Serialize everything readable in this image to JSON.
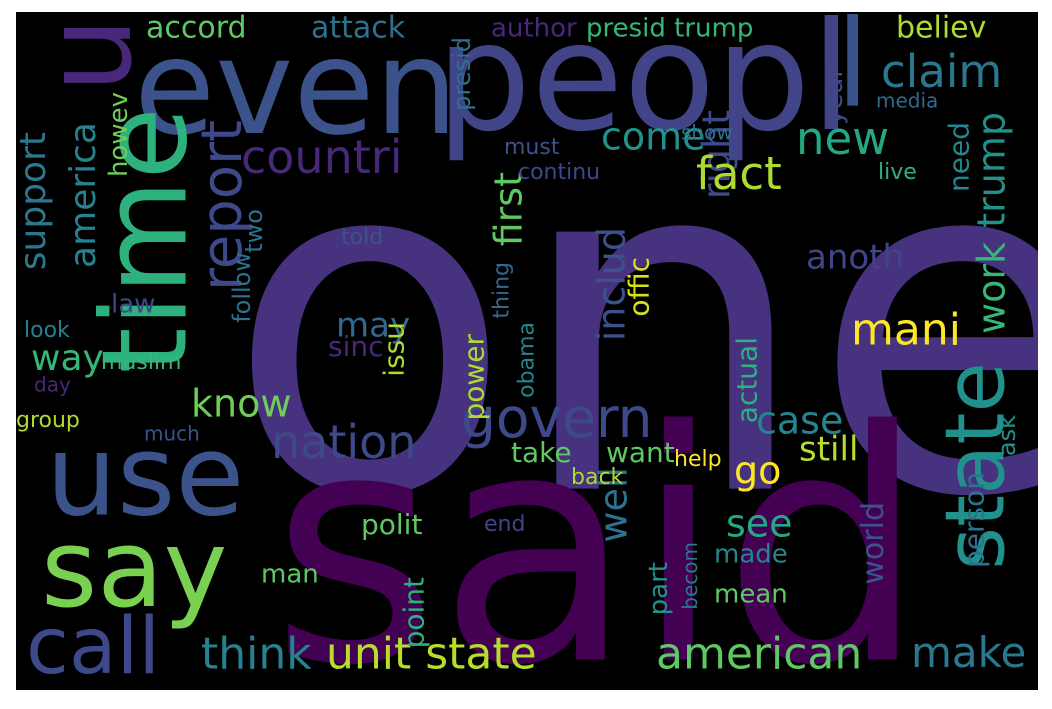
{
  "figure": {
    "background": "#000000",
    "words": [
      {
        "text": "one",
        "color": "#46327e"
      },
      {
        "text": "said",
        "color": "#440154"
      },
      {
        "text": "peopl",
        "color": "#414487"
      },
      {
        "text": "even",
        "color": "#3b528b"
      },
      {
        "text": "u",
        "color": "#482878"
      },
      {
        "text": "time",
        "color": "#2db27d"
      },
      {
        "text": "use",
        "color": "#3b528b"
      },
      {
        "text": "say",
        "color": "#7ad151"
      },
      {
        "text": "call",
        "color": "#3e4989"
      },
      {
        "text": "state",
        "color": "#21918c"
      },
      {
        "text": "l",
        "color": "#3b528b"
      },
      {
        "text": "report",
        "color": "#3e4989"
      },
      {
        "text": "countri",
        "color": "#482878"
      },
      {
        "text": "govern",
        "color": "#3e4989"
      },
      {
        "text": "nation",
        "color": "#3e4989"
      },
      {
        "text": "unit state",
        "color": "#b5de2b"
      },
      {
        "text": "american",
        "color": "#5ec962"
      },
      {
        "text": "think",
        "color": "#26828e"
      },
      {
        "text": "make",
        "color": "#2a788e"
      },
      {
        "text": "claim",
        "color": "#2a788e"
      },
      {
        "text": "work",
        "color": "#35b779"
      },
      {
        "text": "trump",
        "color": "#21918c"
      },
      {
        "text": "includ",
        "color": "#3b528b"
      },
      {
        "text": "right",
        "color": "#3e4989"
      },
      {
        "text": "fact",
        "color": "#addc30"
      },
      {
        "text": "new",
        "color": "#22a884"
      },
      {
        "text": "come",
        "color": "#21918c"
      },
      {
        "text": "first",
        "color": "#5ec962"
      },
      {
        "text": "mani",
        "color": "#fde725"
      },
      {
        "text": "know",
        "color": "#6ece58"
      },
      {
        "text": "way",
        "color": "#35b779"
      },
      {
        "text": "support",
        "color": "#2a788e"
      },
      {
        "text": "america",
        "color": "#26828e"
      },
      {
        "text": "well",
        "color": "#2c728e"
      },
      {
        "text": "go",
        "color": "#fde725"
      },
      {
        "text": "case",
        "color": "#25858e"
      },
      {
        "text": "see",
        "color": "#22a884"
      },
      {
        "text": "still",
        "color": "#b5de2b"
      },
      {
        "text": "take",
        "color": "#5ec962"
      },
      {
        "text": "want",
        "color": "#5ec962"
      },
      {
        "text": "polit",
        "color": "#5ec962"
      },
      {
        "text": "may",
        "color": "#31688e"
      },
      {
        "text": "issu",
        "color": "#addc30"
      },
      {
        "text": "sinc",
        "color": "#482878"
      },
      {
        "text": "anoth",
        "color": "#414487"
      },
      {
        "text": "offic",
        "color": "#d8e219"
      },
      {
        "text": "power",
        "color": "#addc30"
      },
      {
        "text": "actual",
        "color": "#2db27d"
      },
      {
        "text": "accord",
        "color": "#5ec962"
      },
      {
        "text": "attack",
        "color": "#2c728e"
      },
      {
        "text": "author",
        "color": "#482878"
      },
      {
        "text": "presid trump",
        "color": "#35b779"
      },
      {
        "text": "believ",
        "color": "#addc30"
      },
      {
        "text": "year",
        "color": "#3e4989"
      },
      {
        "text": "media",
        "color": "#31688e"
      },
      {
        "text": "show",
        "color": "#2c728e"
      },
      {
        "text": "must",
        "color": "#3b528b"
      },
      {
        "text": "continu",
        "color": "#3e4989"
      },
      {
        "text": "live",
        "color": "#2db27d"
      },
      {
        "text": "need",
        "color": "#25858e"
      },
      {
        "text": "presid",
        "color": "#2c728e"
      },
      {
        "text": "howev",
        "color": "#6ece58"
      },
      {
        "text": "two",
        "color": "#2c728e"
      },
      {
        "text": "law",
        "color": "#3e4989"
      },
      {
        "text": "follow",
        "color": "#2c728e"
      },
      {
        "text": "told",
        "color": "#3b528b"
      },
      {
        "text": "thing",
        "color": "#31688e"
      },
      {
        "text": "obama",
        "color": "#26828e"
      },
      {
        "text": "look",
        "color": "#26828e"
      },
      {
        "text": "muslim",
        "color": "#35b779"
      },
      {
        "text": "day",
        "color": "#482878"
      },
      {
        "text": "group",
        "color": "#addc30"
      },
      {
        "text": "much",
        "color": "#3b528b"
      },
      {
        "text": "help",
        "color": "#fde725"
      },
      {
        "text": "back",
        "color": "#addc30"
      },
      {
        "text": "end",
        "color": "#414487"
      },
      {
        "text": "becom",
        "color": "#2a788e"
      },
      {
        "text": "part",
        "color": "#21918c"
      },
      {
        "text": "made",
        "color": "#25858e"
      },
      {
        "text": "mean",
        "color": "#5ec962"
      },
      {
        "text": "world",
        "color": "#3b528b"
      },
      {
        "text": "person",
        "color": "#2c728e"
      },
      {
        "text": "ask",
        "color": "#21918c"
      },
      {
        "text": "man",
        "color": "#5ec962"
      },
      {
        "text": "point",
        "color": "#2db27d"
      }
    ]
  }
}
